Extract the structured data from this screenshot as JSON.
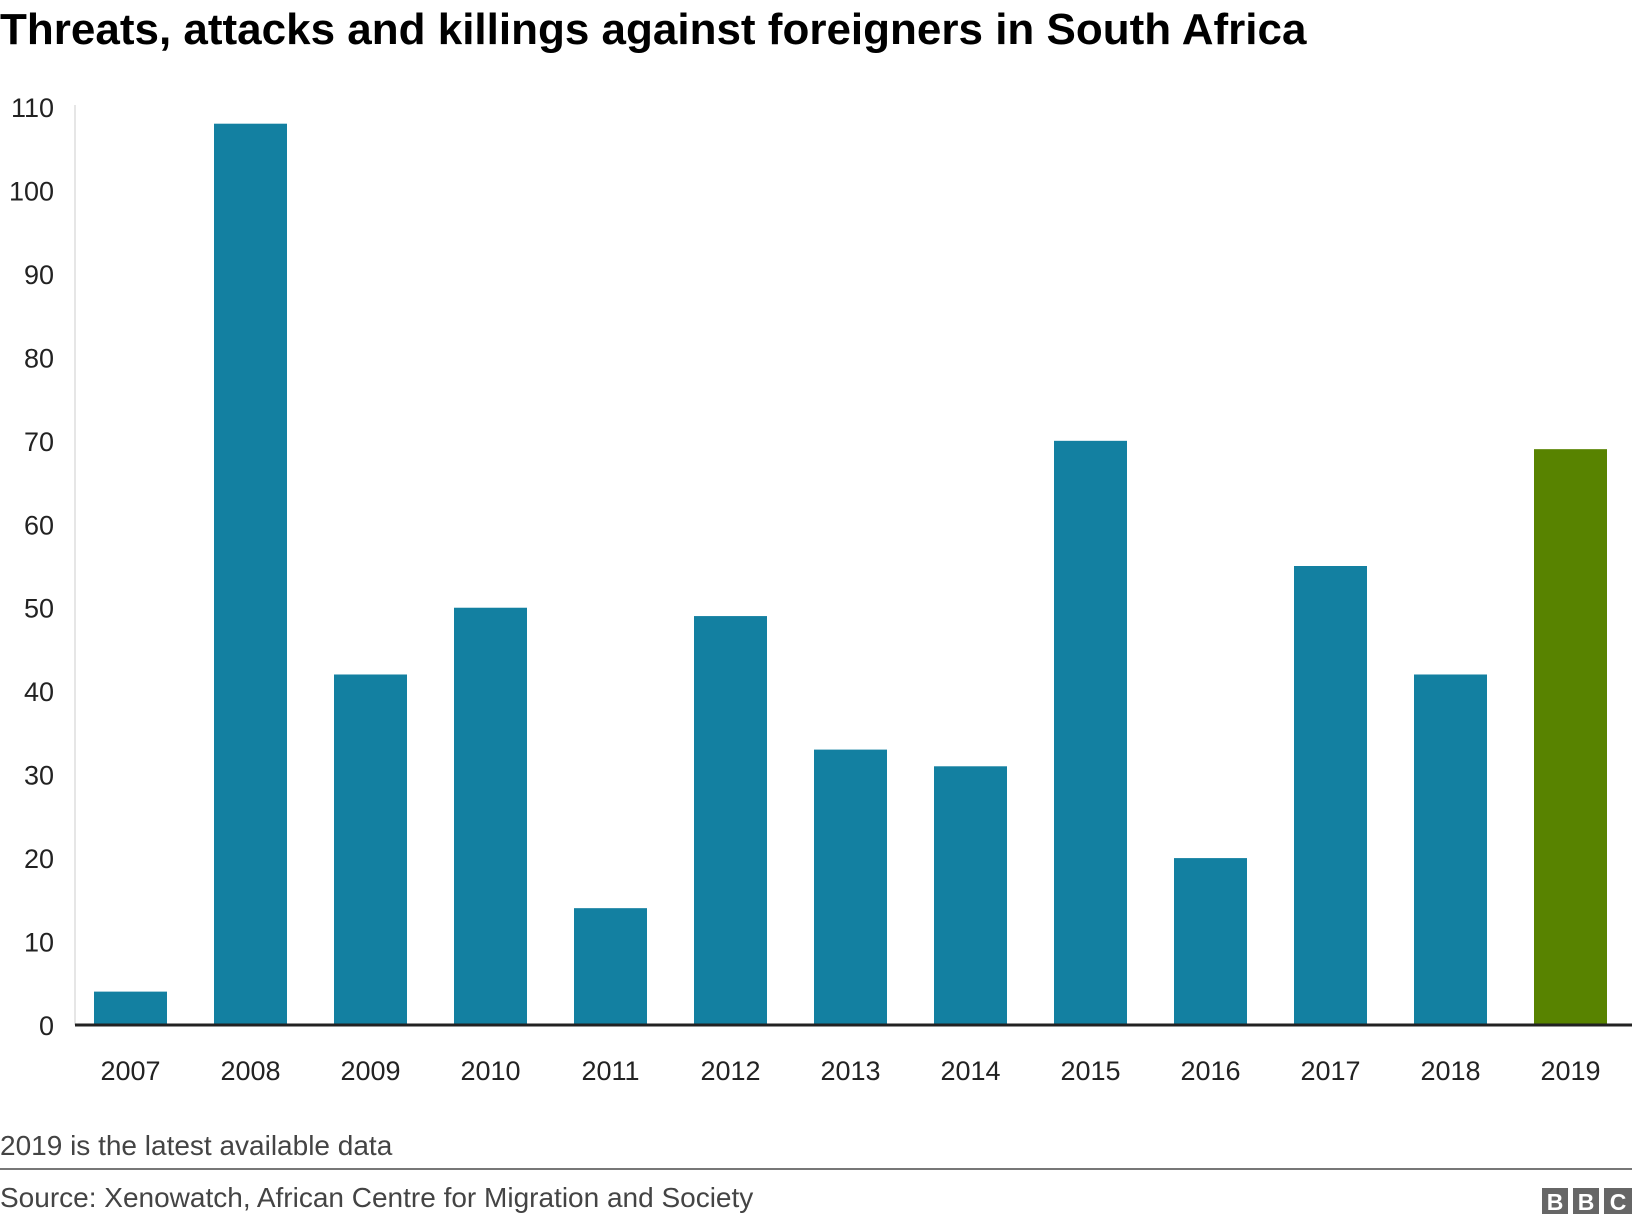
{
  "chart_data": {
    "type": "bar",
    "title": "Threats, attacks and killings against foreigners in South Africa",
    "xlabel": "",
    "ylabel": "",
    "categories": [
      "2007",
      "2008",
      "2009",
      "2010",
      "2011",
      "2012",
      "2013",
      "2014",
      "2015",
      "2016",
      "2017",
      "2018",
      "2019"
    ],
    "values": [
      4,
      108,
      42,
      50,
      14,
      49,
      33,
      31,
      70,
      20,
      55,
      42,
      69
    ],
    "ylim": [
      0,
      110
    ],
    "yticks": [
      0,
      10,
      20,
      30,
      40,
      50,
      60,
      70,
      80,
      90,
      100,
      110
    ],
    "grid": false,
    "colors": {
      "default": "#1380A1",
      "highlight": "#588300"
    },
    "highlight_category": "2019"
  },
  "footer": {
    "note": "2019 is the latest available data",
    "source": "Source: Xenowatch, African Centre for Migration and Society",
    "logo": "BBC"
  }
}
